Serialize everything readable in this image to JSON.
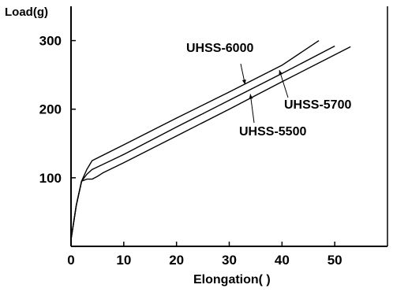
{
  "chart_data": {
    "type": "line",
    "title": "",
    "ylabel": "Load(g)",
    "xlabel": "Elongation(    )",
    "xlim": [
      0,
      60
    ],
    "ylim": [
      0,
      350
    ],
    "xticks": [
      0,
      10,
      20,
      30,
      40,
      50
    ],
    "yticks": [
      100,
      200,
      300
    ],
    "grid": false,
    "legend": "none",
    "series": [
      {
        "name": "UHSS-6000",
        "x": [
          0,
          1,
          2,
          3,
          4,
          10,
          20,
          30,
          40,
          47
        ],
        "y": [
          10,
          60,
          95,
          112,
          125,
          148,
          187,
          225,
          264,
          300
        ]
      },
      {
        "name": "UHSS-5700",
        "x": [
          0,
          1,
          2,
          3,
          4,
          10,
          20,
          30,
          40,
          50
        ],
        "y": [
          10,
          60,
          95,
          105,
          112,
          134,
          174,
          213,
          252,
          292
        ]
      },
      {
        "name": "UHSS-5500",
        "x": [
          0,
          1,
          2,
          3,
          4,
          5,
          6,
          10,
          20,
          30,
          40,
          53
        ],
        "y": [
          10,
          60,
          95,
          98,
          98,
          102,
          107,
          122,
          161,
          200,
          240,
          291
        ]
      }
    ],
    "annotations": [
      {
        "text": "UHSS-6000",
        "series": "UHSS-6000",
        "x": 33,
        "y": 236
      },
      {
        "text": "UHSS-5700",
        "series": "UHSS-5700",
        "x": 39.5,
        "y": 257
      },
      {
        "text": "UHSS-5500",
        "series": "UHSS-5500",
        "x": 34,
        "y": 222
      }
    ]
  }
}
